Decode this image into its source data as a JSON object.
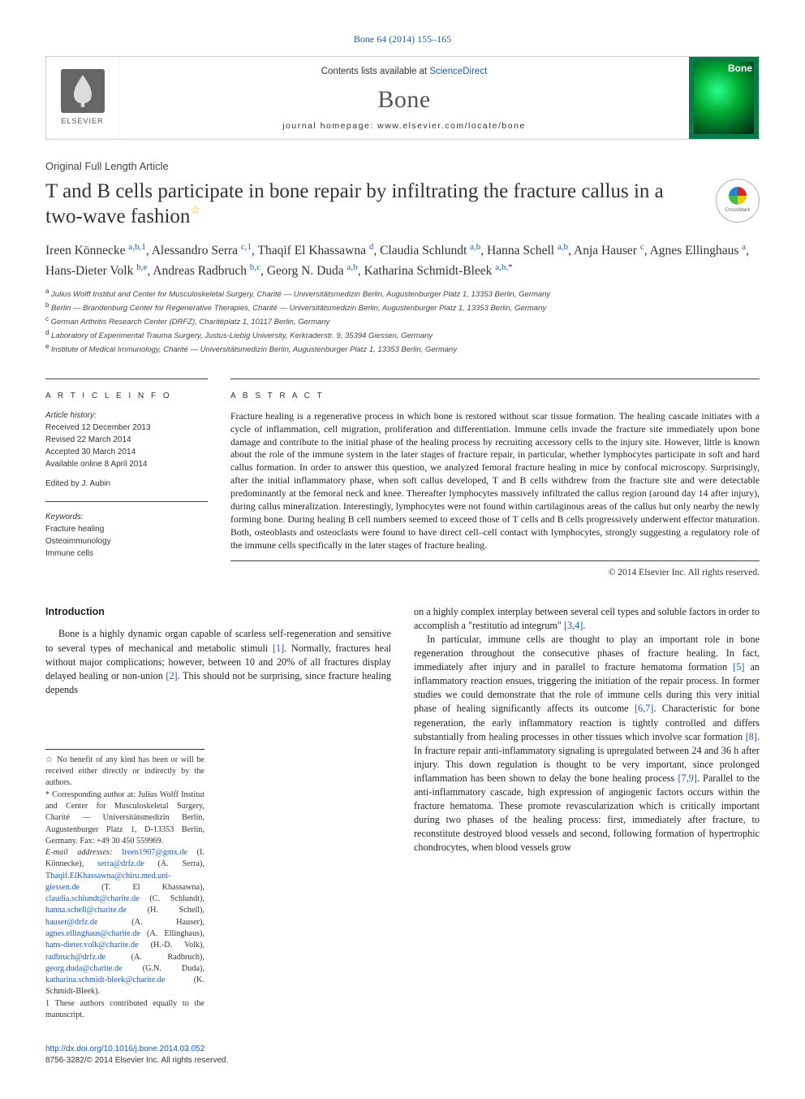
{
  "top_citation": "Bone 64 (2014) 155–165",
  "header": {
    "contents_prefix": "Contents lists available at ",
    "contents_link": "ScienceDirect",
    "journal": "Bone",
    "homepage_prefix": "journal homepage: ",
    "homepage": "www.elsevier.com/locate/bone",
    "publisher": "ELSEVIER",
    "cover_label": "Bone"
  },
  "article_type": "Original Full Length Article",
  "title": "T and B cells participate in bone repair by infiltrating the fracture callus in a two-wave fashion",
  "title_star": "☆",
  "crossmark_label": "CrossMark",
  "authors_html": "Ireen Könnecke <sup>a,b,1</sup>, Alessandro Serra <sup>c,1</sup>, Thaqif El Khassawna <sup>d</sup>, Claudia Schlundt <sup>a,b</sup>, Hanna Schell <sup>a,b</sup>, Anja Hauser <sup>c</sup>, Agnes Ellinghaus <sup>a</sup>, Hans-Dieter Volk <sup>b,e</sup>, Andreas Radbruch <sup>b,c</sup>, Georg N. Duda <sup>a,b</sup>, Katharina Schmidt-Bleek <sup>a,b,</sup><sup class=\"star2\">*</sup>",
  "affiliations": [
    {
      "key": "a",
      "text": "Julius Wolff Institut and Center for Musculoskeletal Surgery, Charité — Universitätsmedizin Berlin, Augustenburger Platz 1, 13353 Berlin, Germany"
    },
    {
      "key": "b",
      "text": "Berlin — Brandenburg Center for Regenerative Therapies, Charité — Universitätsmedizin Berlin, Augustenburger Platz 1, 13353 Berlin, Germany"
    },
    {
      "key": "c",
      "text": "German Arthritis Research Center (DRFZ), Charitéplatz 1, 10117 Berlin, Germany"
    },
    {
      "key": "d",
      "text": "Laboratory of Experimental Trauma Surgery, Justus-Liebig University, Kerkraderstr. 9, 35394 Giessen, Germany"
    },
    {
      "key": "e",
      "text": "Institute of Medical Immunology, Charité — Universitätsmedizin Berlin, Augustenburger Platz 1, 13353 Berlin, Germany"
    }
  ],
  "info": {
    "section_label": "A R T I C L E   I N F O",
    "history_label": "Article history:",
    "history": [
      "Received 12 December 2013",
      "Revised 22 March 2014",
      "Accepted 30 March 2014",
      "Available online 8 April 2014"
    ],
    "editor": "Edited by J. Aubin",
    "keywords_label": "Keywords:",
    "keywords": [
      "Fracture healing",
      "Osteoimmunology",
      "Immune cells"
    ]
  },
  "abstract": {
    "label": "A B S T R A C T",
    "text": "Fracture healing is a regenerative process in which bone is restored without scar tissue formation. The healing cascade initiates with a cycle of inflammation, cell migration, proliferation and differentiation. Immune cells invade the fracture site immediately upon bone damage and contribute to the initial phase of the healing process by recruiting accessory cells to the injury site. However, little is known about the role of the immune system in the later stages of fracture repair, in particular, whether lymphocytes participate in soft and hard callus formation. In order to answer this question, we analyzed femoral fracture healing in mice by confocal microscopy. Surprisingly, after the initial inflammatory phase, when soft callus developed, T and B cells withdrew from the fracture site and were detectable predominantly at the femoral neck and knee. Thereafter lymphocytes massively infiltrated the callus region (around day 14 after injury), during callus mineralization. Interestingly, lymphocytes were not found within cartilaginous areas of the callus but only nearby the newly forming bone. During healing B cell numbers seemed to exceed those of T cells and B cells progressively underwent effector maturation. Both, osteoblasts and osteoclasts were found to have direct cell–cell contact with lymphocytes, strongly suggesting a regulatory role of the immune cells specifically in the later stages of fracture healing.",
    "copyright": "© 2014 Elsevier Inc. All rights reserved."
  },
  "intro": {
    "heading": "Introduction",
    "para1": "Bone is a highly dynamic organ capable of scarless self-regeneration and sensitive to several types of mechanical and metabolic stimuli [1]. Normally, fractures heal without major complications; however, between 10 and 20% of all fractures display delayed healing or non-union [2]. This should not be surprising, since fracture healing depends",
    "para2_pre": "on a highly complex interplay between several cell types and soluble factors in order to accomplish a \"restitutio ad integrum\" [3,4].",
    "para3": "In particular, immune cells are thought to play an important role in bone regeneration throughout the consecutive phases of fracture healing. In fact, immediately after injury and in parallel to fracture hematoma formation [5] an inflammatory reaction ensues, triggering the initiation of the repair process. In former studies we could demonstrate that the role of immune cells during this very initial phase of healing significantly affects its outcome [6,7]. Characteristic for bone regeneration, the early inflammatory reaction is tightly controlled and differs substantially from healing processes in other tissues which involve scar formation [8]. In fracture repair anti-inflammatory signaling is upregulated between 24 and 36 h after injury. This down regulation is thought to be very important, since prolonged inflammation has been shown to delay the bone healing process [7,9]. Parallel to the anti-inflammatory cascade, high expression of angiogenic factors occurs within the fracture hematoma. These promote revascularization which is critically important during two phases of the healing process: first, immediately after fracture, to reconstitute destroyed blood vessels and second, following formation of hypertrophic chondrocytes, when blood vessels grow"
  },
  "footnotes": {
    "star": "☆  No benefit of any kind has been or will be received either directly or indirectly by the authors.",
    "corr": "*  Corresponding author at: Julius Wolff Institut and Center for Musculoskeletal Surgery, Charité — Universitätsmedizin Berlin, Augustenburger Platz 1, D-13353 Berlin, Germany. Fax: +49 30 450 559969.",
    "emails_label": "E-mail addresses: ",
    "emails": "Ireen1907@gmx.de (I. Könnecke), serra@drfz.de (A. Serra), Thaqif.ElKhassawna@chiru.med.uni-giessen.de (T. El Khassawna), claudia.schlundt@charite.de (C. Schlundt), hanna.schell@charite.de (H. Schell), hauser@drfz.de (A. Hauser), agnes.ellinghaus@charite.de (A. Ellinghaus), hans-dieter.volk@charite.de (H.-D. Volk), radbruch@drfz.de (A. Radbruch), georg.duda@charite.de (G.N. Duda), katharina.schmidt-bleek@charite.de (K. Schmidt-Bleek).",
    "equal": "1  These authors contributed equally to the manuscript."
  },
  "bottom": {
    "doi": "http://dx.doi.org/10.1016/j.bone.2014.03.052",
    "issn_line": "8756-3282/© 2014 Elsevier Inc. All rights reserved."
  },
  "colors": {
    "link": "#1a5ab5",
    "text": "#222222",
    "rule": "#444444"
  }
}
